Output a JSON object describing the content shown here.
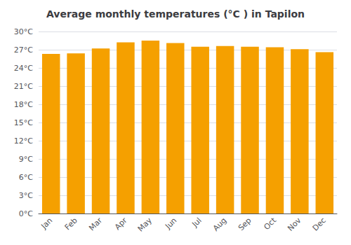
{
  "chart_data": {
    "type": "bar",
    "title": "Average monthly temperatures (°C ) in Tapilon",
    "categories": [
      "Jan",
      "Feb",
      "Mar",
      "Apr",
      "May",
      "Jun",
      "Jul",
      "Aug",
      "Sep",
      "Oct",
      "Nov",
      "Dec"
    ],
    "values": [
      26.3,
      26.4,
      27.2,
      28.2,
      28.5,
      28.1,
      27.5,
      27.6,
      27.5,
      27.4,
      27.1,
      26.6
    ],
    "color": "#F5A000",
    "ylim": [
      0,
      30
    ],
    "yticks": [
      {
        "value": 0,
        "label": "0°C"
      },
      {
        "value": 3,
        "label": "3°C"
      },
      {
        "value": 6,
        "label": "6°C"
      },
      {
        "value": 9,
        "label": "9°C"
      },
      {
        "value": 12,
        "label": "12°C"
      },
      {
        "value": 15,
        "label": "15°C"
      },
      {
        "value": 18,
        "label": "18°C"
      },
      {
        "value": 21,
        "label": "21°C"
      },
      {
        "value": 24,
        "label": "24°C"
      },
      {
        "value": 27,
        "label": "27°C"
      },
      {
        "value": 30,
        "label": "30°C"
      }
    ],
    "grid": true
  }
}
